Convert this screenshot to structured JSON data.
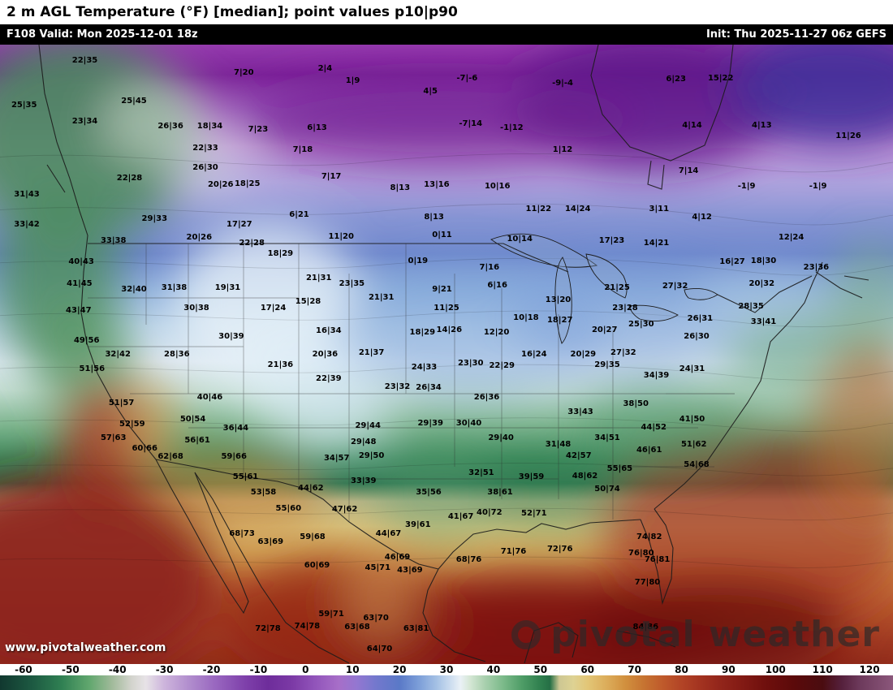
{
  "header": {
    "title": "2 m AGL Temperature (°F) [median]; point values p10|p90",
    "valid": "F108 Valid: Mon 2025-12-01 18z",
    "init": "Init: Thu 2025-11-27 06z GEFS"
  },
  "watermark": {
    "site": "www.pivotalweather.com",
    "brand": "pivotal weather"
  },
  "colorbar": {
    "min": -65,
    "max": 125,
    "ticks": [
      -60,
      -50,
      -40,
      -30,
      -20,
      -10,
      0,
      10,
      20,
      30,
      40,
      50,
      60,
      70,
      80,
      90,
      100,
      110,
      120
    ],
    "stops": [
      [
        -65,
        "#11382f"
      ],
      [
        -58,
        "#1d5a42"
      ],
      [
        -52,
        "#2f7f52"
      ],
      [
        -46,
        "#61a76e"
      ],
      [
        -41,
        "#a3bb9c"
      ],
      [
        -37,
        "#d3d4cd"
      ],
      [
        -34,
        "#e7e3e7"
      ],
      [
        -30,
        "#cdb4dc"
      ],
      [
        -25,
        "#b28fce"
      ],
      [
        -19,
        "#9866bf"
      ],
      [
        -13,
        "#7f41ab"
      ],
      [
        -8,
        "#6e2d9b"
      ],
      [
        -3,
        "#7b39a5"
      ],
      [
        2,
        "#9154ba"
      ],
      [
        7,
        "#a76ec8"
      ],
      [
        11,
        "#9377d1"
      ],
      [
        15,
        "#7378cd"
      ],
      [
        20,
        "#5a79c7"
      ],
      [
        24,
        "#7b9dd8"
      ],
      [
        28,
        "#a6c2e5"
      ],
      [
        31,
        "#cedef0"
      ],
      [
        33,
        "#eaf1f6"
      ],
      [
        35,
        "#d5e7d5"
      ],
      [
        38,
        "#abd1b0"
      ],
      [
        42,
        "#7cba8a"
      ],
      [
        46,
        "#4f9d67"
      ],
      [
        50,
        "#2f7f4e"
      ],
      [
        52,
        "#256f45"
      ],
      [
        54,
        "#cdc793"
      ],
      [
        57,
        "#ded293"
      ],
      [
        60,
        "#e2c677"
      ],
      [
        64,
        "#dcad5b"
      ],
      [
        68,
        "#d1903e"
      ],
      [
        72,
        "#c67331"
      ],
      [
        76,
        "#bf5a2b"
      ],
      [
        80,
        "#b24426"
      ],
      [
        84,
        "#a33320"
      ],
      [
        88,
        "#93261b"
      ],
      [
        93,
        "#821a14"
      ],
      [
        98,
        "#6f0f0d"
      ],
      [
        104,
        "#5b0a0a"
      ],
      [
        110,
        "#4a0c10"
      ],
      [
        114,
        "#55203c"
      ],
      [
        118,
        "#6d3a5c"
      ],
      [
        125,
        "#8b577b"
      ]
    ]
  },
  "map": {
    "points": [
      [
        9.5,
        2.6,
        "22|35"
      ],
      [
        27.3,
        4.6,
        "7|20"
      ],
      [
        36.4,
        3.9,
        "2|4"
      ],
      [
        39.5,
        5.9,
        "1|9"
      ],
      [
        52.3,
        5.5,
        "-7|-6"
      ],
      [
        48.2,
        7.6,
        "4|5"
      ],
      [
        63.0,
        6.3,
        "-9|-4"
      ],
      [
        75.7,
        5.6,
        "6|23"
      ],
      [
        80.7,
        5.5,
        "15|22"
      ],
      [
        2.7,
        9.8,
        "25|35"
      ],
      [
        15.0,
        9.2,
        "25|45"
      ],
      [
        9.5,
        12.5,
        "23|34"
      ],
      [
        19.1,
        13.2,
        "26|36"
      ],
      [
        23.5,
        13.2,
        "18|34"
      ],
      [
        28.9,
        13.8,
        "7|23"
      ],
      [
        35.5,
        13.5,
        "6|13"
      ],
      [
        52.7,
        12.8,
        "-7|14"
      ],
      [
        57.3,
        13.5,
        "-1|12"
      ],
      [
        77.5,
        13.1,
        "4|14"
      ],
      [
        85.3,
        13.1,
        "4|13"
      ],
      [
        95.0,
        14.8,
        "11|26"
      ],
      [
        23.0,
        16.8,
        "22|33"
      ],
      [
        33.9,
        17.0,
        "7|18"
      ],
      [
        63.0,
        17.0,
        "1|12"
      ],
      [
        23.0,
        19.9,
        "26|30"
      ],
      [
        37.1,
        21.4,
        "7|17"
      ],
      [
        14.5,
        21.6,
        "22|28"
      ],
      [
        24.7,
        22.7,
        "20|26"
      ],
      [
        27.7,
        22.5,
        "18|25"
      ],
      [
        44.8,
        23.2,
        "8|13"
      ],
      [
        48.9,
        22.7,
        "13|16"
      ],
      [
        55.7,
        22.9,
        "10|16"
      ],
      [
        77.1,
        20.4,
        "7|14"
      ],
      [
        83.6,
        22.9,
        "-1|9"
      ],
      [
        91.6,
        22.9,
        "-1|9"
      ],
      [
        3.0,
        24.2,
        "31|43"
      ],
      [
        17.3,
        28.2,
        "29|33"
      ],
      [
        26.8,
        29.1,
        "17|27"
      ],
      [
        33.5,
        27.5,
        "6|21"
      ],
      [
        48.6,
        27.9,
        "8|13"
      ],
      [
        60.3,
        26.6,
        "11|22"
      ],
      [
        64.7,
        26.6,
        "14|24"
      ],
      [
        73.8,
        26.6,
        "3|11"
      ],
      [
        78.6,
        27.9,
        "4|12"
      ],
      [
        3.0,
        29.1,
        "33|42"
      ],
      [
        12.7,
        31.7,
        "33|38"
      ],
      [
        22.3,
        31.2,
        "20|26"
      ],
      [
        28.2,
        32.1,
        "22|28"
      ],
      [
        38.2,
        31.1,
        "11|20"
      ],
      [
        49.5,
        30.8,
        "0|11"
      ],
      [
        58.2,
        31.5,
        "10|14"
      ],
      [
        68.5,
        31.7,
        "17|23"
      ],
      [
        73.5,
        32.1,
        "14|21"
      ],
      [
        88.6,
        31.2,
        "12|24"
      ],
      [
        9.1,
        35.1,
        "40|43"
      ],
      [
        31.4,
        33.8,
        "18|29"
      ],
      [
        46.8,
        35.0,
        "0|19"
      ],
      [
        54.8,
        36.0,
        "7|16"
      ],
      [
        82.0,
        35.1,
        "16|27"
      ],
      [
        85.5,
        35.0,
        "18|30"
      ],
      [
        91.4,
        36.0,
        "23|36"
      ],
      [
        8.9,
        38.7,
        "41|45"
      ],
      [
        15.0,
        39.6,
        "32|40"
      ],
      [
        19.5,
        39.3,
        "31|38"
      ],
      [
        25.5,
        39.3,
        "19|31"
      ],
      [
        35.7,
        37.7,
        "21|31"
      ],
      [
        39.4,
        38.7,
        "23|35"
      ],
      [
        49.5,
        39.6,
        "9|21"
      ],
      [
        55.7,
        38.9,
        "6|16"
      ],
      [
        69.1,
        39.3,
        "21|25"
      ],
      [
        75.6,
        39.1,
        "27|32"
      ],
      [
        85.3,
        38.7,
        "20|32"
      ],
      [
        8.8,
        43.0,
        "43|47"
      ],
      [
        22.0,
        42.6,
        "30|38"
      ],
      [
        30.6,
        42.6,
        "17|24"
      ],
      [
        34.5,
        41.5,
        "15|28"
      ],
      [
        42.7,
        40.9,
        "21|31"
      ],
      [
        50.0,
        42.6,
        "11|25"
      ],
      [
        62.5,
        41.3,
        "13|20"
      ],
      [
        70.0,
        42.6,
        "23|28"
      ],
      [
        71.8,
        45.2,
        "25|30"
      ],
      [
        84.1,
        42.3,
        "28|35"
      ],
      [
        78.4,
        44.3,
        "26|31"
      ],
      [
        85.5,
        44.8,
        "33|41"
      ],
      [
        9.7,
        47.8,
        "49|56"
      ],
      [
        25.9,
        47.2,
        "30|39"
      ],
      [
        36.8,
        46.3,
        "16|34"
      ],
      [
        47.3,
        46.5,
        "18|29"
      ],
      [
        50.3,
        46.1,
        "14|26"
      ],
      [
        55.6,
        46.5,
        "12|20"
      ],
      [
        58.9,
        44.2,
        "10|18"
      ],
      [
        62.7,
        44.6,
        "18|27"
      ],
      [
        67.7,
        46.1,
        "20|27"
      ],
      [
        78.0,
        47.2,
        "26|30"
      ],
      [
        13.2,
        50.1,
        "32|42"
      ],
      [
        19.8,
        50.1,
        "28|36"
      ],
      [
        31.4,
        51.8,
        "21|36"
      ],
      [
        36.4,
        50.1,
        "20|36"
      ],
      [
        41.6,
        49.8,
        "21|37"
      ],
      [
        47.5,
        52.2,
        "24|33"
      ],
      [
        52.7,
        51.5,
        "23|30"
      ],
      [
        56.2,
        51.9,
        "22|29"
      ],
      [
        59.8,
        50.1,
        "16|24"
      ],
      [
        65.3,
        50.1,
        "20|29"
      ],
      [
        69.8,
        49.8,
        "27|32"
      ],
      [
        68.0,
        51.8,
        "29|35"
      ],
      [
        10.3,
        52.4,
        "51|56"
      ],
      [
        73.5,
        53.5,
        "34|39"
      ],
      [
        77.5,
        52.4,
        "24|31"
      ],
      [
        13.6,
        57.9,
        "51|57"
      ],
      [
        23.5,
        57.0,
        "40|46"
      ],
      [
        36.8,
        54.0,
        "22|39"
      ],
      [
        44.5,
        55.3,
        "23|32"
      ],
      [
        48.0,
        55.4,
        "26|34"
      ],
      [
        54.5,
        57.0,
        "26|36"
      ],
      [
        71.2,
        58.1,
        "38|50"
      ],
      [
        65.0,
        59.4,
        "33|43"
      ],
      [
        77.5,
        60.6,
        "41|50"
      ],
      [
        14.8,
        61.3,
        "52|59"
      ],
      [
        21.6,
        60.6,
        "50|54"
      ],
      [
        41.2,
        61.6,
        "29|44"
      ],
      [
        48.2,
        61.2,
        "29|39"
      ],
      [
        52.5,
        61.2,
        "30|40"
      ],
      [
        73.2,
        61.9,
        "44|52"
      ],
      [
        12.7,
        63.6,
        "57|63"
      ],
      [
        22.1,
        64.0,
        "56|61"
      ],
      [
        26.4,
        62.0,
        "36|44"
      ],
      [
        40.7,
        64.2,
        "29|48"
      ],
      [
        56.1,
        63.6,
        "29|40"
      ],
      [
        62.5,
        64.6,
        "31|48"
      ],
      [
        68.0,
        63.6,
        "34|51"
      ],
      [
        16.2,
        65.3,
        "60|66"
      ],
      [
        26.2,
        66.6,
        "59|66"
      ],
      [
        37.7,
        66.8,
        "34|57"
      ],
      [
        41.6,
        66.4,
        "29|50"
      ],
      [
        53.9,
        69.2,
        "32|51"
      ],
      [
        72.7,
        65.5,
        "46|61"
      ],
      [
        77.7,
        64.6,
        "51|62"
      ],
      [
        19.1,
        66.6,
        "62|68"
      ],
      [
        64.8,
        66.4,
        "42|57"
      ],
      [
        69.4,
        68.5,
        "55|65"
      ],
      [
        78.0,
        67.9,
        "54|68"
      ],
      [
        27.5,
        69.9,
        "55|61"
      ],
      [
        40.7,
        70.5,
        "33|39"
      ],
      [
        59.5,
        69.9,
        "39|59"
      ],
      [
        65.5,
        69.7,
        "48|62"
      ],
      [
        29.5,
        72.3,
        "53|58"
      ],
      [
        34.8,
        71.7,
        "44|62"
      ],
      [
        48.0,
        72.3,
        "35|56"
      ],
      [
        56.0,
        72.3,
        "38|61"
      ],
      [
        68.0,
        71.8,
        "50|74"
      ],
      [
        32.3,
        75.0,
        "55|60"
      ],
      [
        38.6,
        75.1,
        "47|62"
      ],
      [
        51.6,
        76.3,
        "41|67"
      ],
      [
        54.8,
        75.6,
        "40|72"
      ],
      [
        59.8,
        75.8,
        "52|71"
      ],
      [
        46.8,
        77.6,
        "39|61"
      ],
      [
        27.1,
        79.0,
        "68|73"
      ],
      [
        30.3,
        80.3,
        "63|69"
      ],
      [
        35.0,
        79.6,
        "59|68"
      ],
      [
        43.5,
        79.0,
        "44|67"
      ],
      [
        72.7,
        79.6,
        "74|82"
      ],
      [
        57.5,
        81.9,
        "71|76"
      ],
      [
        62.7,
        81.5,
        "72|76"
      ],
      [
        52.5,
        83.2,
        "68|76"
      ],
      [
        44.5,
        82.8,
        "46|69"
      ],
      [
        35.5,
        84.1,
        "60|69"
      ],
      [
        42.3,
        84.5,
        "45|71"
      ],
      [
        45.9,
        84.9,
        "43|69"
      ],
      [
        71.8,
        82.2,
        "76|80"
      ],
      [
        73.6,
        83.2,
        "76|81"
      ],
      [
        72.5,
        86.9,
        "77|80"
      ],
      [
        37.1,
        92.0,
        "59|71"
      ],
      [
        42.1,
        92.7,
        "63|70"
      ],
      [
        40.0,
        94.1,
        "63|68"
      ],
      [
        46.6,
        94.4,
        "63|81"
      ],
      [
        30.0,
        94.4,
        "72|78"
      ],
      [
        34.4,
        94.0,
        "74|78"
      ],
      [
        42.5,
        97.6,
        "64|70"
      ],
      [
        72.3,
        94.1,
        "84|86"
      ]
    ]
  }
}
